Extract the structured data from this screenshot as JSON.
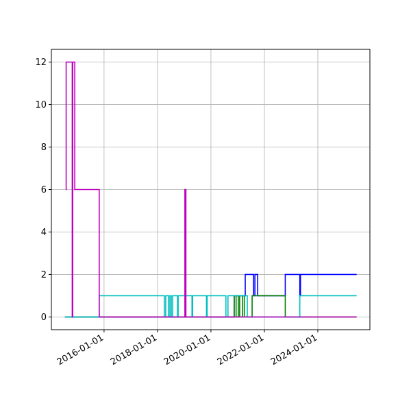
{
  "chart_data": {
    "type": "step",
    "xlim": [
      "2014-01-11",
      "2025-12-13"
    ],
    "xticks": [
      "2016-01-01",
      "2018-01-01",
      "2020-01-01",
      "2022-01-01",
      "2024-01-01"
    ],
    "ylim": [
      -0.6,
      12.6
    ],
    "yticks": [
      0,
      2,
      4,
      6,
      8,
      10,
      12
    ],
    "grid": true,
    "series": [
      {
        "color": "#0000ff",
        "x": [
          "2014-07-16",
          "2020-11-14",
          "2021-04-14",
          "2021-08-05",
          "2021-08-24",
          "2021-10-01",
          "2022-10-13",
          "2023-04-30",
          "2023-05-09",
          "2025-06-15"
        ],
        "values": [
          0,
          1,
          2,
          1,
          2,
          1,
          2,
          1,
          2,
          2
        ]
      },
      {
        "color": "#008000",
        "x": [
          "2014-07-16",
          "2020-11-14",
          "2020-12-10",
          "2021-01-09",
          "2021-01-28",
          "2021-03-07",
          "2021-04-01",
          "2021-07-17",
          "2022-10-13",
          "2025-06-15"
        ],
        "values": [
          0,
          1,
          0,
          1,
          0,
          1,
          0,
          1,
          0,
          0
        ]
      },
      {
        "color": "#00bfbf",
        "x": [
          "2014-07-16",
          "2015-10-27",
          "2018-04-04",
          "2018-04-23",
          "2018-06-01",
          "2018-06-19",
          "2018-07-08",
          "2018-07-27",
          "2018-10-01",
          "2018-10-10",
          "2019-04-17",
          "2019-04-26",
          "2019-11-01",
          "2019-11-10",
          "2020-07-24",
          "2020-08-21",
          "2021-05-12",
          "2023-04-30",
          "2025-06-15"
        ],
        "values": [
          0,
          1,
          0,
          1,
          0,
          1,
          0,
          1,
          0,
          1,
          0,
          1,
          0,
          1,
          0,
          1,
          0,
          1,
          1
        ]
      },
      {
        "color": "#bf00bf",
        "x": [
          "2014-07-25",
          "2014-08-01",
          "2014-10-16",
          "2014-10-23",
          "2014-10-30",
          "2014-11-27",
          "2015-10-27",
          "2019-01-10",
          "2019-01-24",
          "2025-06-15"
        ],
        "values": [
          6,
          12,
          12,
          0,
          12,
          6,
          0,
          6,
          0,
          0
        ]
      }
    ]
  }
}
